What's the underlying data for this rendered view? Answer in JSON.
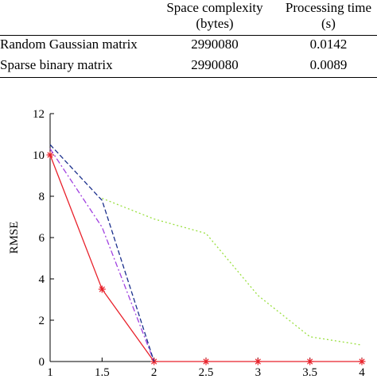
{
  "table": {
    "headers": [
      [
        "Space complexity",
        "(bytes)"
      ],
      [
        "Processing time",
        "(s)"
      ]
    ],
    "rows": [
      {
        "label": "Random Gaussian matrix",
        "space": "2990080",
        "time": "0.0142"
      },
      {
        "label": "Sparse binary matrix",
        "space": "2990080",
        "time": "0.0089"
      }
    ]
  },
  "chart_data": {
    "type": "line",
    "xlabel": "",
    "ylabel": "RMSE",
    "xlim": [
      1,
      4
    ],
    "ylim": [
      0,
      12
    ],
    "xticks": [
      "1",
      "1.5",
      "2",
      "2.5",
      "3",
      "3.5",
      "4"
    ],
    "yticks": [
      "0",
      "2",
      "4",
      "6",
      "8",
      "10",
      "12"
    ],
    "grid": false,
    "series": [
      {
        "color": "#e8202a",
        "dash": "solid",
        "marker": "asterisk",
        "x": [
          1,
          1.5,
          2,
          2.5,
          3,
          3.5,
          4
        ],
        "y": [
          10.0,
          3.5,
          0,
          0,
          0,
          0,
          0
        ]
      },
      {
        "color": "#a040e0",
        "dash": "dashdot",
        "marker": "none",
        "x": [
          1,
          1.5,
          2
        ],
        "y": [
          10.3,
          6.5,
          0
        ]
      },
      {
        "color": "#1a2f8c",
        "dash": "dashed",
        "marker": "none",
        "x": [
          1,
          1.5,
          2
        ],
        "y": [
          10.5,
          7.8,
          0
        ]
      },
      {
        "color": "#9ae040",
        "dash": "dotted",
        "marker": "none",
        "x": [
          1.5,
          2,
          2.5,
          3,
          3.5,
          4
        ],
        "y": [
          7.9,
          6.9,
          6.2,
          3.2,
          1.2,
          0.8
        ]
      }
    ]
  }
}
